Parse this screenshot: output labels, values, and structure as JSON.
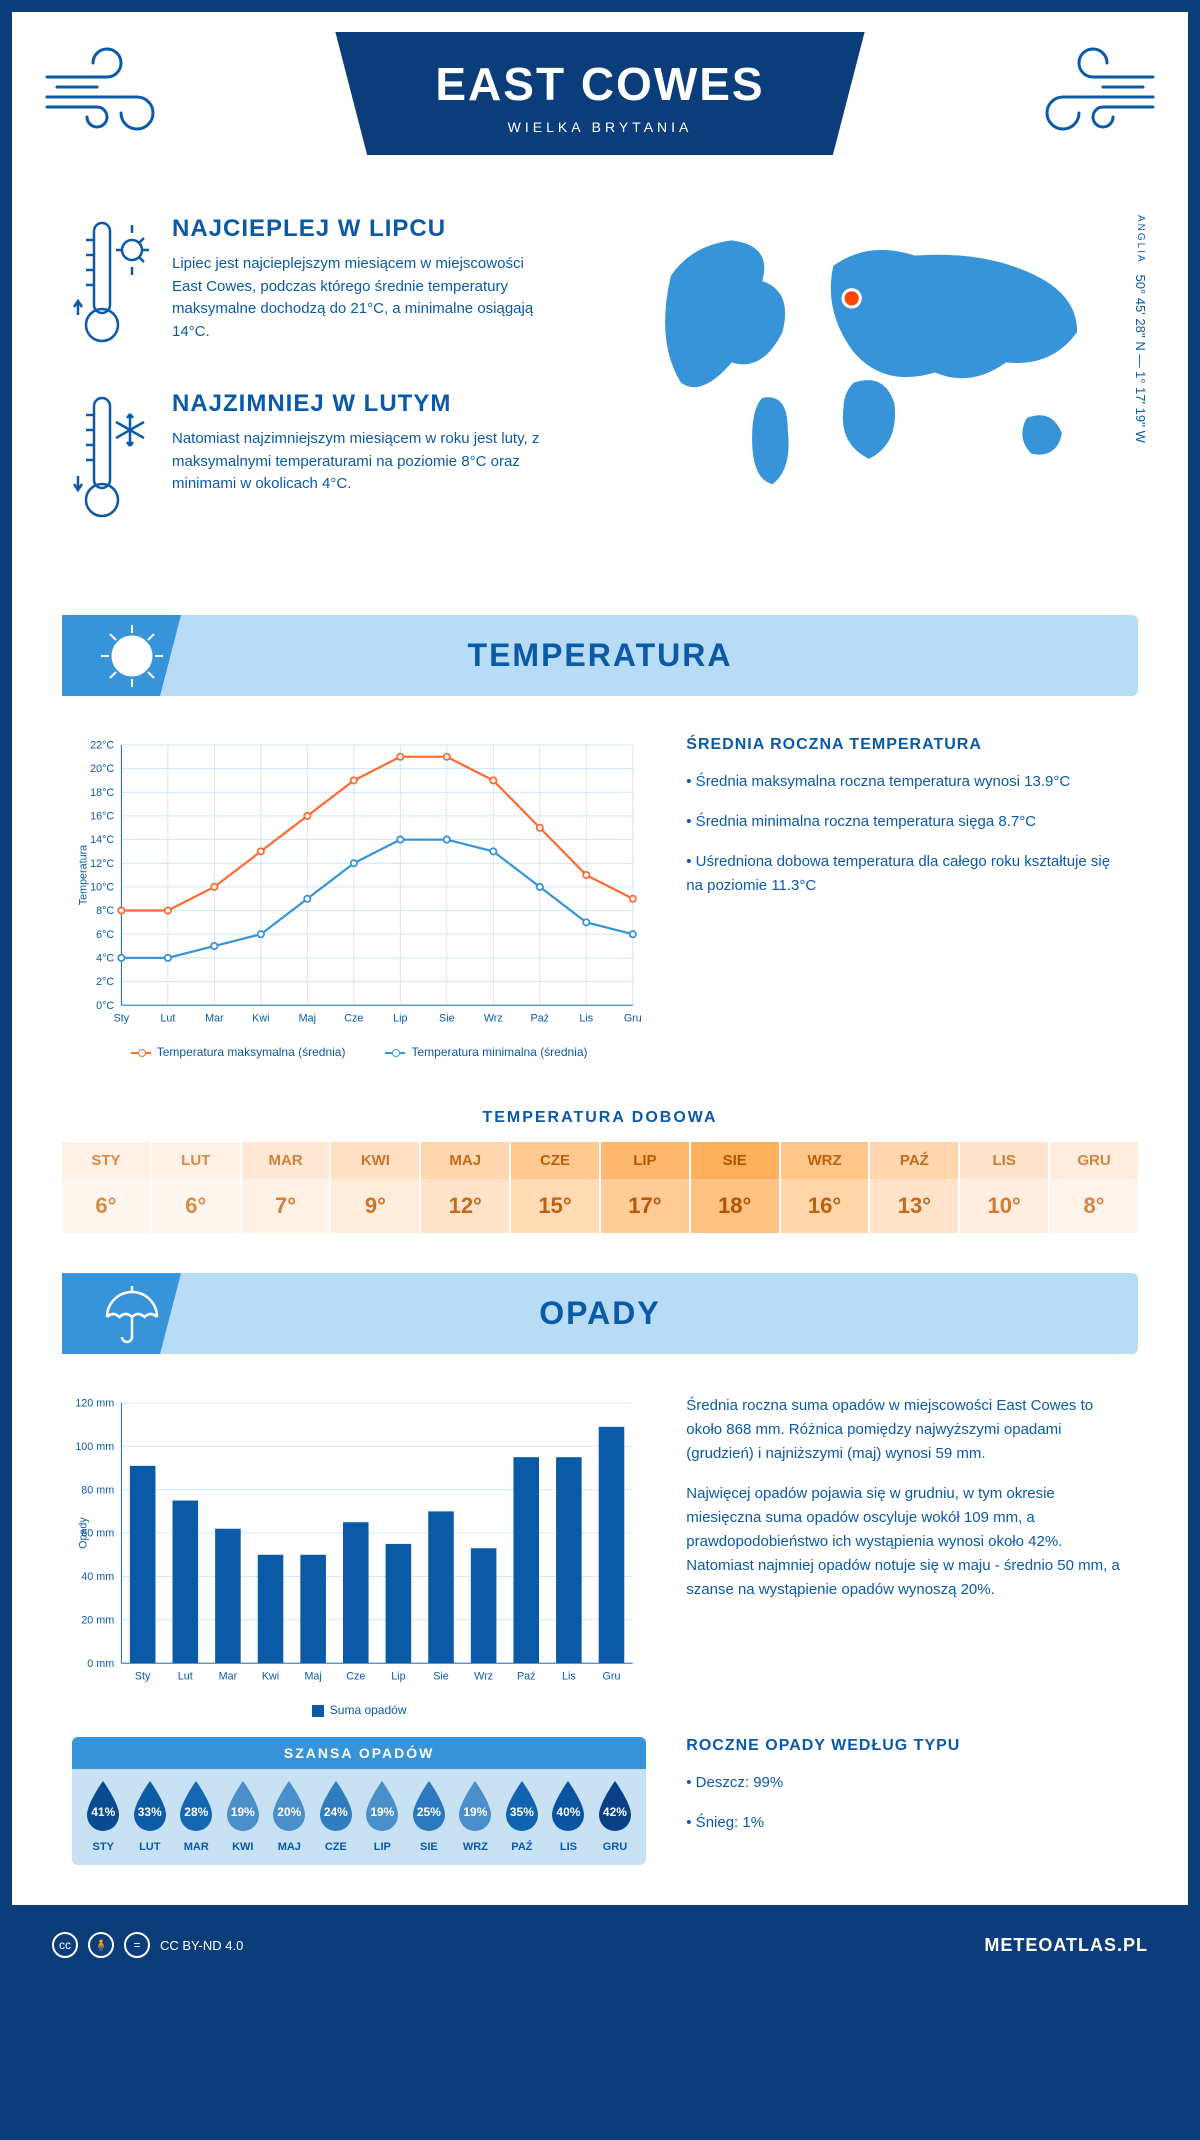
{
  "header": {
    "title": "EAST COWES",
    "subtitle": "WIELKA BRYTANIA"
  },
  "coords": {
    "lat": "50° 45' 28'' N — 1° 17' 19'' W",
    "region": "ANGLIA"
  },
  "facts": {
    "hot": {
      "title": "NAJCIEPLEJ W LIPCU",
      "text": "Lipiec jest najcieplejszym miesiącem w miejscowości East Cowes, podczas którego średnie temperatury maksymalne dochodzą do 21°C, a minimalne osiągają 14°C."
    },
    "cold": {
      "title": "NAJZIMNIEJ W LUTYM",
      "text": "Natomiast najzimniejszym miesiącem w roku jest luty, z maksymalnymi temperaturami na poziomie 8°C oraz minimami w okolicach 4°C."
    }
  },
  "sections": {
    "temperature": "TEMPERATURA",
    "precip": "OPADY"
  },
  "temp_chart": {
    "type": "line",
    "months": [
      "Sty",
      "Lut",
      "Mar",
      "Kwi",
      "Maj",
      "Cze",
      "Lip",
      "Sie",
      "Wrz",
      "Paź",
      "Lis",
      "Gru"
    ],
    "max": [
      8,
      8,
      10,
      13,
      16,
      19,
      21,
      21,
      19,
      15,
      11,
      9
    ],
    "min": [
      4,
      4,
      5,
      6,
      9,
      12,
      14,
      14,
      13,
      10,
      7,
      6
    ],
    "max_color": "#ff6b35",
    "min_color": "#3794d8",
    "ylim": [
      0,
      22
    ],
    "ytick": 2,
    "ylabel": "Temperatura",
    "legend_max": "Temperatura maksymalna (średnia)",
    "legend_min": "Temperatura minimalna (średnia)",
    "grid_color": "#cde4f5",
    "axis_color": "#0a5aa8"
  },
  "temp_side": {
    "title": "ŚREDNIA ROCZNA TEMPERATURA",
    "b1": "• Średnia maksymalna roczna temperatura wynosi 13.9°C",
    "b2": "• Średnia minimalna roczna temperatura sięga 8.7°C",
    "b3": "• Uśredniona dobowa temperatura dla całego roku kształtuje się na poziomie 11.3°C"
  },
  "daily": {
    "title": "TEMPERATURA DOBOWA",
    "months": [
      "STY",
      "LUT",
      "MAR",
      "KWI",
      "MAJ",
      "CZE",
      "LIP",
      "SIE",
      "WRZ",
      "PAŹ",
      "LIS",
      "GRU"
    ],
    "values": [
      "6°",
      "6°",
      "7°",
      "9°",
      "12°",
      "15°",
      "17°",
      "18°",
      "16°",
      "13°",
      "10°",
      "8°"
    ],
    "head_colors": [
      "#fff1e6",
      "#fff1e6",
      "#ffe9d6",
      "#ffe0c4",
      "#ffd6ad",
      "#ffca91",
      "#ffb96f",
      "#ffb05c",
      "#ffc689",
      "#ffd6ad",
      "#ffe3cc",
      "#ffeddf"
    ],
    "body_colors": [
      "#fff6ef",
      "#fff6ef",
      "#fff1e6",
      "#ffecdb",
      "#ffe4cb",
      "#ffdab5",
      "#ffcb96",
      "#ffc285",
      "#ffd5aa",
      "#ffe4cb",
      "#ffeee0",
      "#fff4eb"
    ],
    "text_colors": [
      "#d88a45",
      "#d88a45",
      "#d38138",
      "#cc7529",
      "#c56a1b",
      "#bf6010",
      "#b85605",
      "#b55200",
      "#be5f0e",
      "#c56a1b",
      "#cf7b31",
      "#d5853f"
    ]
  },
  "precip_chart": {
    "type": "bar",
    "months": [
      "Sty",
      "Lut",
      "Mar",
      "Kwi",
      "Maj",
      "Cze",
      "Lip",
      "Sie",
      "Wrz",
      "Paź",
      "Lis",
      "Gru"
    ],
    "values": [
      91,
      75,
      62,
      50,
      50,
      65,
      55,
      70,
      53,
      95,
      95,
      109
    ],
    "color": "#0a5aa8",
    "ylim": [
      0,
      120
    ],
    "ytick": 20,
    "ylabel": "Opady",
    "legend": "Suma opadów",
    "grid_color": "#cde4f5"
  },
  "precip_side": {
    "p1": "Średnia roczna suma opadów w miejscowości East Cowes to około 868 mm. Różnica pomiędzy najwyższymi opadami (grudzień) i najniższymi (maj) wynosi 59 mm.",
    "p2": "Najwięcej opadów pojawia się w grudniu, w tym okresie miesięczna suma opadów oscyluje wokół 109 mm, a prawdopodobieństwo ich wystąpienia wynosi około 42%. Natomiast najmniej opadów notuje się w maju - średnio 50 mm, a szanse na wystąpienie opadów wynoszą 20%.",
    "type_title": "ROCZNE OPADY WEDŁUG TYPU",
    "type_b1": "• Deszcz: 99%",
    "type_b2": "• Śnieg: 1%"
  },
  "chance": {
    "title": "SZANSA OPADÓW",
    "months": [
      "STY",
      "LUT",
      "MAR",
      "KWI",
      "MAJ",
      "CZE",
      "LIP",
      "SIE",
      "WRZ",
      "PAŹ",
      "LIS",
      "GRU"
    ],
    "values": [
      "41%",
      "33%",
      "28%",
      "19%",
      "20%",
      "24%",
      "19%",
      "25%",
      "19%",
      "35%",
      "40%",
      "42%"
    ],
    "colors": [
      "#0a4a8f",
      "#0d5aa5",
      "#1567b3",
      "#4a8fca",
      "#4a8fca",
      "#2f7dc0",
      "#4a8fca",
      "#2a78bd",
      "#4a8fca",
      "#1163af",
      "#0b53a0",
      "#093f85"
    ]
  },
  "footer": {
    "license": "CC BY-ND 4.0",
    "site": "METEOATLAS.PL"
  }
}
